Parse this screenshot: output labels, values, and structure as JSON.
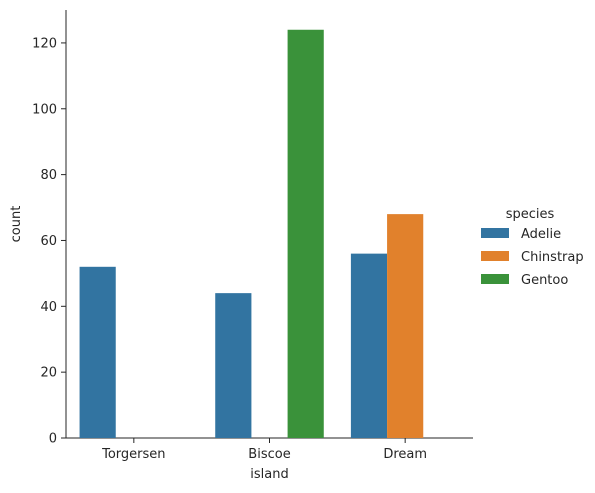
{
  "chart_data": {
    "type": "bar",
    "title": "",
    "xlabel": "island",
    "ylabel": "count",
    "categories": [
      "Torgersen",
      "Biscoe",
      "Dream"
    ],
    "ylim": [
      0,
      130
    ],
    "yticks": [
      0,
      20,
      40,
      60,
      80,
      100,
      120
    ],
    "grid": false,
    "legend": {
      "title": "species",
      "placement": "right"
    },
    "series": [
      {
        "name": "Adelie",
        "color": "#3274a1",
        "values": [
          52,
          44,
          56
        ]
      },
      {
        "name": "Chinstrap",
        "color": "#e1812c",
        "values": [
          0,
          0,
          68
        ]
      },
      {
        "name": "Gentoo",
        "color": "#3a923a",
        "values": [
          0,
          124,
          0
        ]
      }
    ]
  }
}
